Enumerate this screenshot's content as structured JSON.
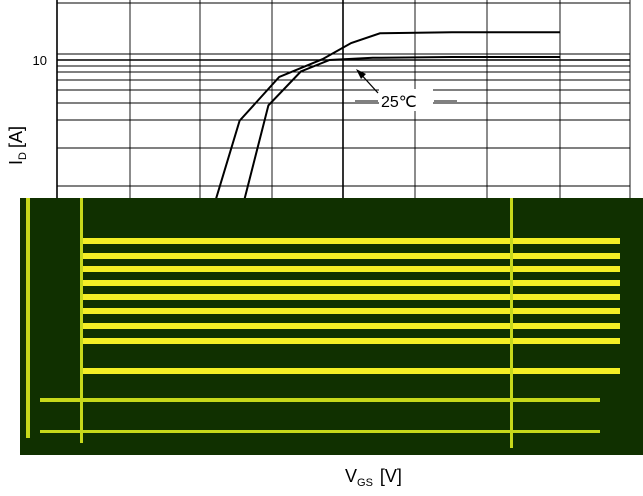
{
  "chart_data": {
    "type": "line",
    "title": "",
    "xlabel": "V",
    "xlabel_sub": "GS",
    "xlabel_unit": "[V]",
    "ylabel": "I",
    "ylabel_sub": "D",
    "ylabel_unit": "[A]",
    "y_scale": "log",
    "y_tick_labels": [
      {
        "value": 10,
        "label": "10"
      }
    ],
    "grid": true,
    "legend": "none",
    "annotations": [
      {
        "text": "25℃"
      }
    ],
    "series": [
      {
        "points": [
          [
            3.2,
            1.5
          ],
          [
            3.55,
            4.5
          ],
          [
            4.1,
            8.0
          ],
          [
            4.7,
            10.1
          ],
          [
            5.1,
            12.5
          ],
          [
            5.5,
            14.2
          ],
          [
            6.5,
            14.4
          ],
          [
            8.0,
            14.4
          ]
        ]
      },
      {
        "points": [
          [
            3.6,
            1.5
          ],
          [
            3.95,
            5.5
          ],
          [
            4.4,
            8.6
          ],
          [
            4.8,
            10.0
          ],
          [
            5.4,
            10.3
          ],
          [
            6.5,
            10.4
          ],
          [
            8.0,
            10.4
          ]
        ]
      }
    ],
    "colors": {
      "line": "#000000",
      "grid": "#000000",
      "corrupt_bg": "#103000",
      "corrupt_fg": "#f4ee25"
    }
  }
}
